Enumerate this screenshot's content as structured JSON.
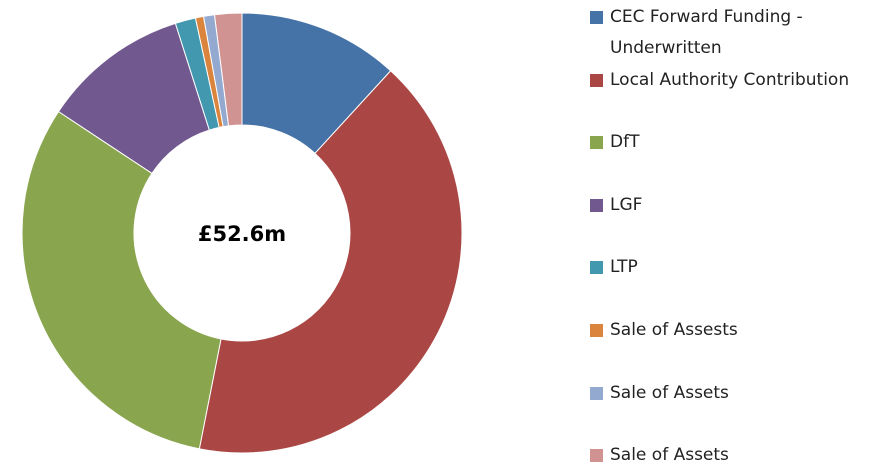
{
  "chart_data": {
    "type": "donut",
    "center_label": "£52.6m",
    "categories": [
      "CEC Forward Funding - Underwritten",
      "Local Authority Contribution",
      "DfT",
      "LGF",
      "LTP",
      "Sale of Assests",
      "Sale of Assets",
      "Sale of Assets"
    ],
    "values": [
      11.8,
      41.3,
      31.2,
      10.8,
      1.5,
      0.6,
      0.8,
      2.0
    ],
    "colors": [
      "#4572a7",
      "#aa4643",
      "#89a54e",
      "#71588f",
      "#4198af",
      "#db843d",
      "#93a9cf",
      "#d19392"
    ]
  }
}
